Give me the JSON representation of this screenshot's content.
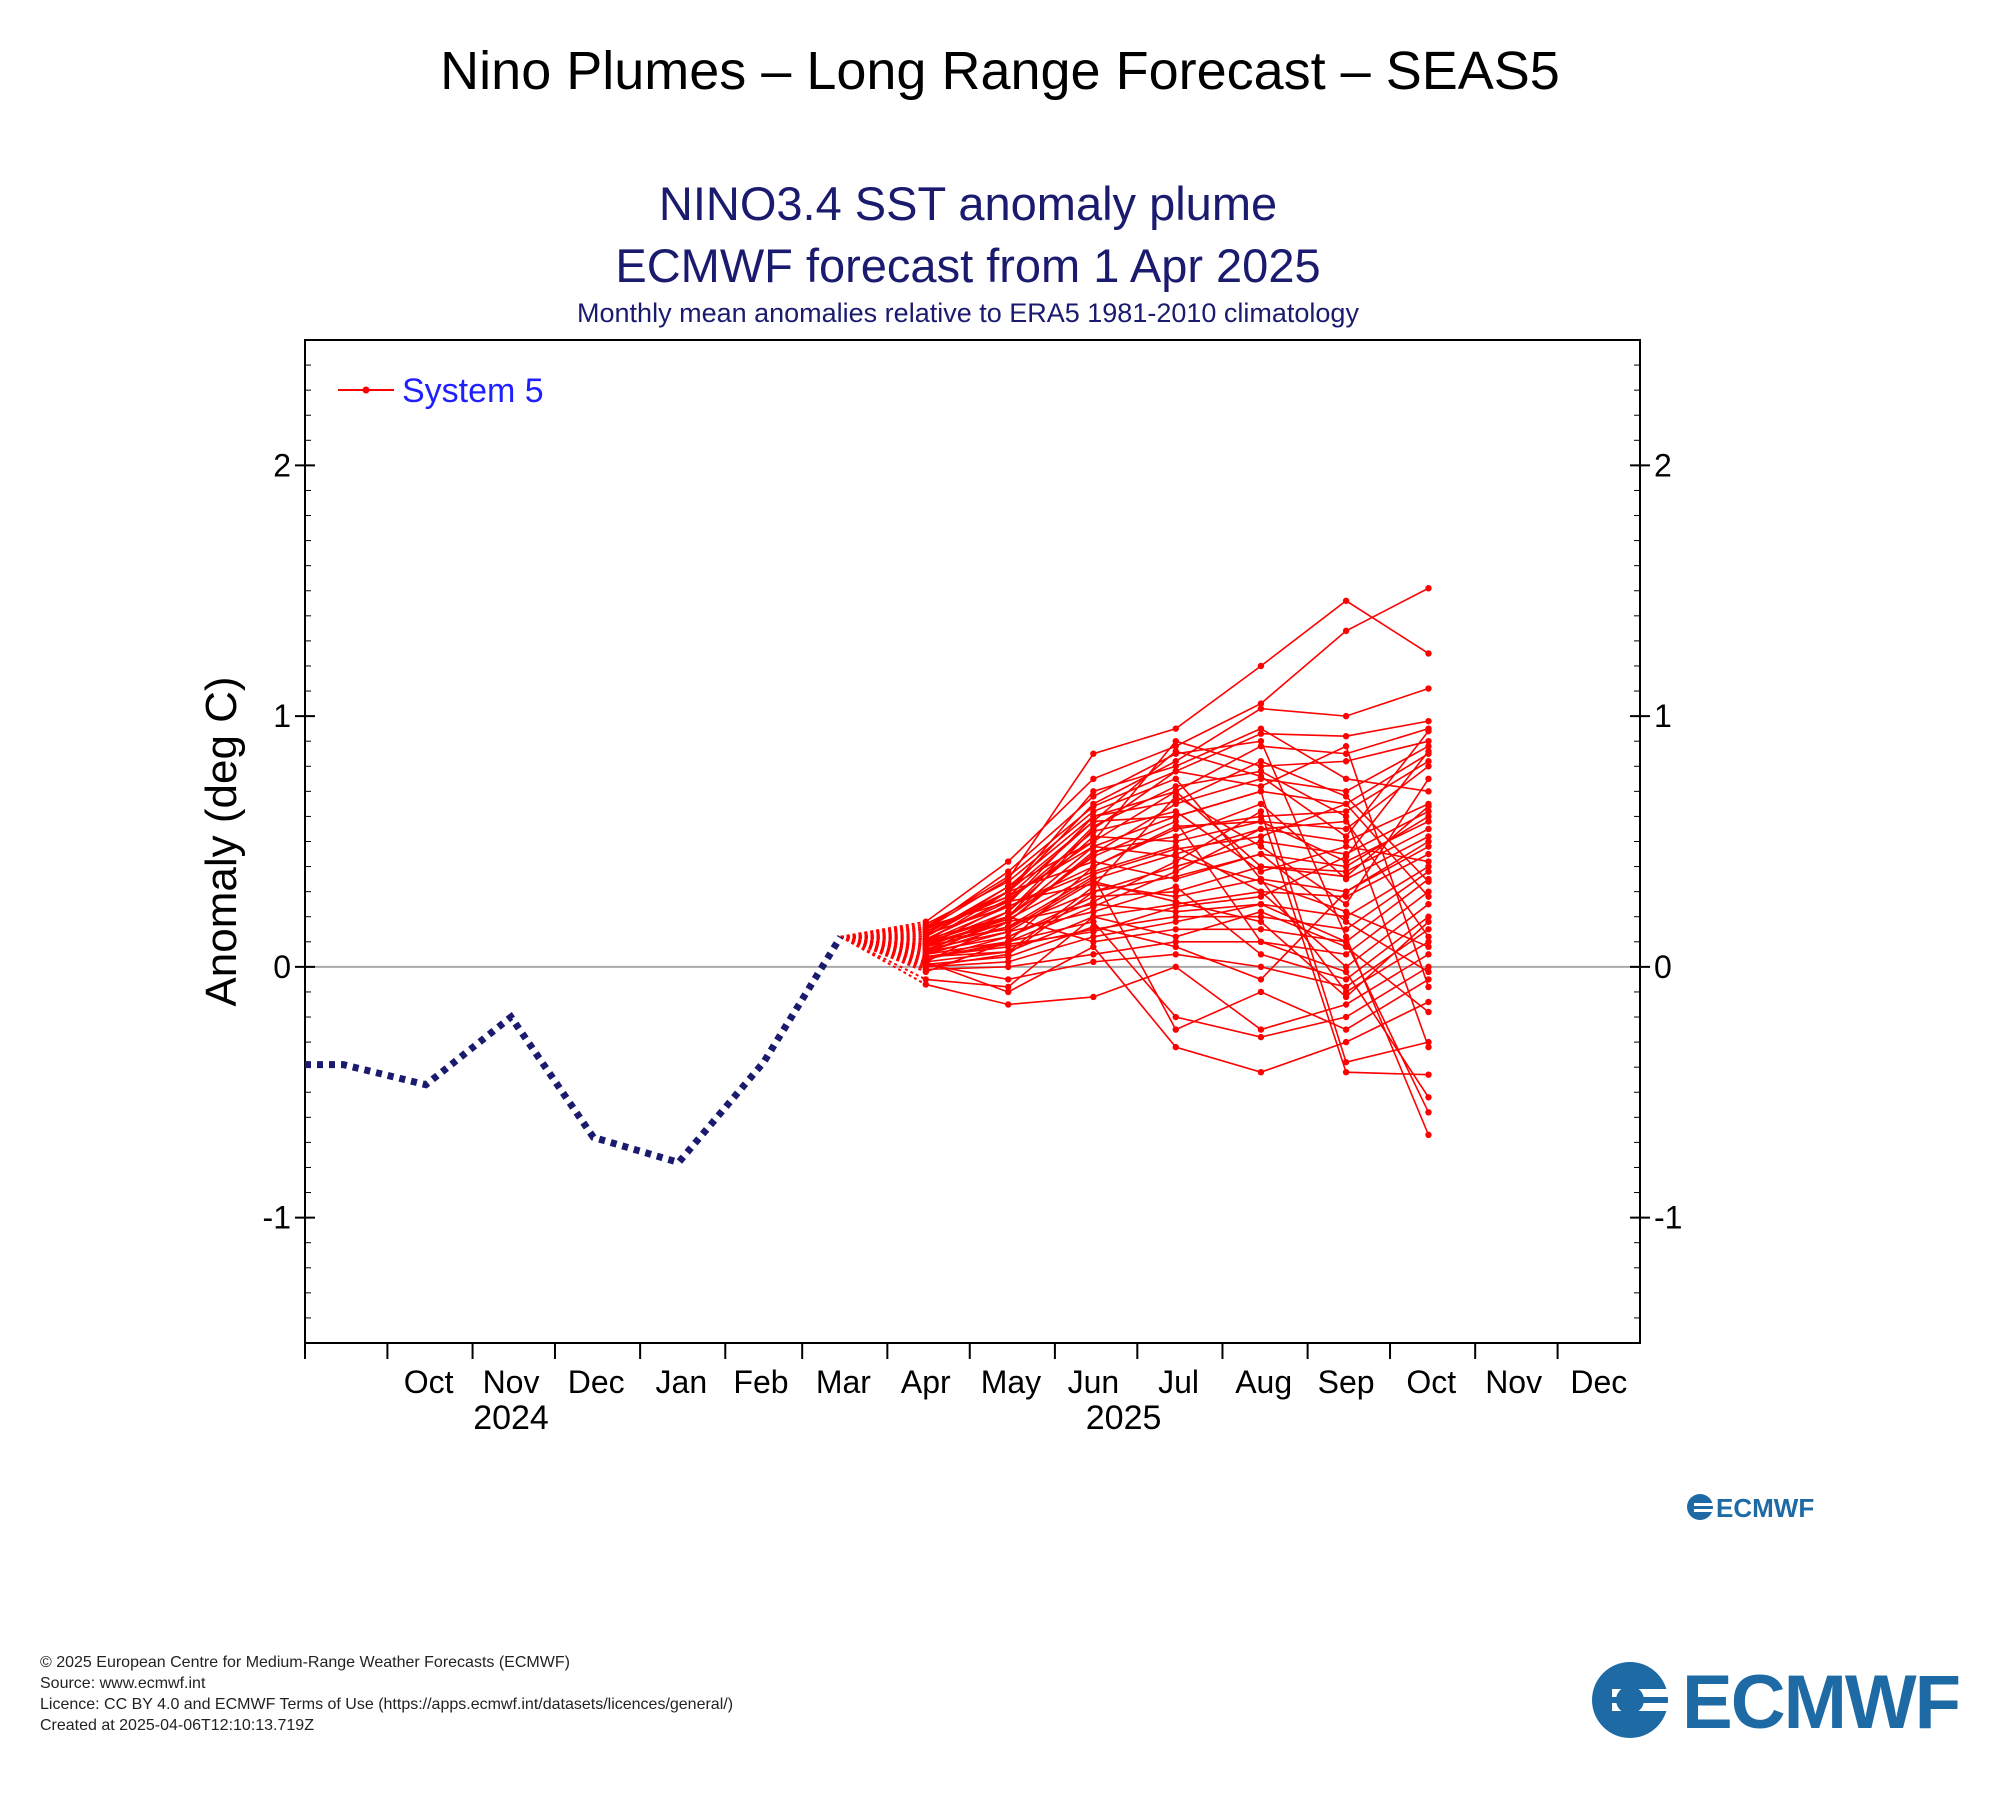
{
  "page": {
    "title": "Nino Plumes – Long Range Forecast – SEAS5"
  },
  "chart_data": {
    "type": "line",
    "title": "NINO3.4 SST anomaly plume",
    "title2": "ECMWF forecast from 1 Apr 2025",
    "subtitle": "Monthly mean anomalies relative to ERA5 1981-2010 climatology",
    "ylabel": "Anomaly (deg C)",
    "xlabel": "",
    "ylim": [
      -1.5,
      2.5
    ],
    "yticks": [
      -1,
      0,
      1,
      2
    ],
    "ytick_labels": [
      "-1",
      "0",
      "1",
      "2"
    ],
    "x_month_labels": [
      "Oct",
      "Nov",
      "Dec",
      "Jan",
      "Feb",
      "Mar",
      "Apr",
      "May",
      "Jun",
      "Jul",
      "Aug",
      "Sep",
      "Oct",
      "Nov",
      "Dec"
    ],
    "x_year_labels": [
      {
        "label": "2024",
        "month": "Nov 2024"
      },
      {
        "label": "2025",
        "month": "Jun 2025"
      }
    ],
    "legend": {
      "entries": [
        "System 5"
      ],
      "placement": "top-left"
    },
    "grid": false,
    "zero_line": true,
    "colors": {
      "observed": "#1a1a6e",
      "forecast": "#ff0000",
      "title": "#1a1a6e",
      "legend_text": "#2020ff"
    },
    "observed": {
      "name": "",
      "dates": [
        "2024-09-15",
        "2024-10-15",
        "2024-11-15",
        "2024-12-15",
        "2025-01-15",
        "2025-02-15",
        "2025-03-15"
      ],
      "values": [
        -0.39,
        -0.47,
        -0.2,
        -0.68,
        -0.78,
        -0.38,
        0.12
      ]
    },
    "forecast": {
      "name": "System 5",
      "dates": [
        "2025-03-15",
        "2025-04-15",
        "2025-05-15",
        "2025-06-15",
        "2025-07-15",
        "2025-08-15",
        "2025-09-15",
        "2025-10-15"
      ],
      "members": [
        [
          0.12,
          0.15,
          0.35,
          0.85,
          0.95,
          1.2,
          1.46,
          1.25
        ],
        [
          0.12,
          0.18,
          0.42,
          0.75,
          0.88,
          1.05,
          1.34,
          1.51
        ],
        [
          0.12,
          0.1,
          0.3,
          0.65,
          0.82,
          1.03,
          1.0,
          1.11
        ],
        [
          0.12,
          0.05,
          0.2,
          0.55,
          0.78,
          0.93,
          0.92,
          0.98
        ],
        [
          0.12,
          0.08,
          0.25,
          0.6,
          0.7,
          0.88,
          0.85,
          0.95
        ],
        [
          0.12,
          0.12,
          0.32,
          0.5,
          0.9,
          0.8,
          0.82,
          0.9
        ],
        [
          0.12,
          0.02,
          0.18,
          0.45,
          0.65,
          0.75,
          0.7,
          0.88
        ],
        [
          0.12,
          0.15,
          0.28,
          0.58,
          0.6,
          0.7,
          0.65,
          0.85
        ],
        [
          0.12,
          -0.02,
          0.1,
          0.4,
          0.55,
          0.6,
          0.62,
          0.82
        ],
        [
          0.12,
          0.06,
          0.22,
          0.52,
          0.5,
          0.58,
          0.55,
          0.8
        ],
        [
          0.12,
          0.1,
          0.15,
          0.35,
          0.45,
          0.55,
          0.5,
          0.65
        ],
        [
          0.12,
          0.0,
          0.05,
          0.3,
          0.4,
          0.5,
          0.45,
          0.62
        ],
        [
          0.12,
          0.14,
          0.3,
          0.42,
          0.35,
          0.45,
          0.4,
          0.6
        ],
        [
          0.12,
          0.03,
          0.12,
          0.28,
          0.3,
          0.4,
          0.38,
          0.55
        ],
        [
          0.12,
          0.16,
          0.26,
          0.33,
          0.28,
          0.35,
          0.3,
          0.5
        ],
        [
          0.12,
          -0.05,
          -0.08,
          0.2,
          0.25,
          0.3,
          0.28,
          0.45
        ],
        [
          0.12,
          0.09,
          0.18,
          0.25,
          0.22,
          0.25,
          0.2,
          0.4
        ],
        [
          0.12,
          0.04,
          0.08,
          0.15,
          0.2,
          0.2,
          0.15,
          0.38
        ],
        [
          0.12,
          0.11,
          0.2,
          0.1,
          0.15,
          0.15,
          0.1,
          0.35
        ],
        [
          0.12,
          -0.01,
          0.0,
          0.05,
          0.1,
          0.1,
          0.05,
          0.3
        ],
        [
          0.12,
          0.13,
          0.24,
          0.38,
          0.48,
          0.3,
          0.0,
          0.25
        ],
        [
          0.12,
          0.07,
          0.14,
          0.22,
          0.32,
          0.05,
          -0.05,
          0.2
        ],
        [
          0.12,
          0.01,
          -0.05,
          0.02,
          0.05,
          0.0,
          -0.08,
          0.15
        ],
        [
          0.12,
          0.17,
          0.34,
          0.62,
          0.75,
          0.35,
          -0.1,
          0.1
        ],
        [
          0.12,
          -0.07,
          -0.15,
          -0.12,
          0.0,
          -0.25,
          -0.15,
          0.05
        ],
        [
          0.12,
          0.05,
          0.1,
          0.18,
          -0.2,
          -0.28,
          -0.2,
          0.0
        ],
        [
          0.12,
          0.08,
          0.16,
          0.36,
          -0.25,
          -0.1,
          -0.25,
          -0.05
        ],
        [
          0.12,
          0.02,
          -0.1,
          0.08,
          -0.32,
          -0.42,
          -0.3,
          -0.14
        ],
        [
          0.12,
          0.14,
          0.28,
          0.48,
          0.6,
          0.7,
          -0.38,
          -0.3
        ],
        [
          0.12,
          0.06,
          0.12,
          0.26,
          0.42,
          0.62,
          -0.42,
          -0.43
        ],
        [
          0.12,
          0.1,
          0.2,
          0.44,
          0.58,
          0.1,
          -0.02,
          -0.52
        ],
        [
          0.12,
          0.0,
          0.02,
          0.12,
          0.18,
          0.25,
          0.1,
          -0.58
        ],
        [
          0.12,
          0.15,
          0.38,
          0.68,
          0.85,
          0.9,
          0.12,
          -0.67
        ],
        [
          0.12,
          0.09,
          0.22,
          0.56,
          0.72,
          0.78,
          0.6,
          -0.32
        ],
        [
          0.12,
          0.04,
          0.06,
          0.32,
          0.68,
          0.48,
          0.25,
          0.75
        ],
        [
          0.12,
          0.12,
          0.3,
          0.7,
          0.8,
          0.95,
          0.75,
          0.7
        ],
        [
          0.12,
          0.07,
          0.18,
          0.46,
          0.52,
          0.65,
          0.35,
          0.52
        ],
        [
          0.12,
          0.11,
          0.26,
          0.54,
          0.62,
          0.38,
          0.48,
          0.42
        ],
        [
          0.12,
          0.03,
          0.1,
          0.24,
          0.38,
          0.55,
          0.58,
          0.12
        ],
        [
          0.12,
          0.16,
          0.36,
          0.64,
          0.78,
          0.72,
          0.88,
          -0.08
        ],
        [
          0.12,
          0.05,
          0.14,
          0.34,
          0.26,
          0.18,
          -0.12,
          0.18
        ],
        [
          0.12,
          0.13,
          0.32,
          0.6,
          0.66,
          0.82,
          0.68,
          0.34
        ],
        [
          0.12,
          0.08,
          0.2,
          0.48,
          0.44,
          0.34,
          0.22,
          0.08
        ],
        [
          0.12,
          0.01,
          0.04,
          0.16,
          0.08,
          -0.05,
          0.3,
          0.48
        ],
        [
          0.12,
          0.1,
          0.24,
          0.4,
          0.56,
          0.58,
          0.42,
          0.58
        ],
        [
          0.12,
          0.06,
          0.16,
          0.3,
          0.36,
          0.45,
          0.18,
          -0.02
        ],
        [
          0.12,
          0.14,
          0.3,
          0.58,
          0.86,
          0.76,
          0.52,
          0.94
        ],
        [
          0.12,
          0.02,
          0.06,
          0.2,
          0.12,
          0.22,
          0.08,
          -0.18
        ],
        [
          0.12,
          0.09,
          0.19,
          0.37,
          0.47,
          0.52,
          0.65,
          0.28
        ],
        [
          0.12,
          0.11,
          0.27,
          0.5,
          0.7,
          0.4,
          0.36,
          0.64
        ],
        [
          0.12,
          0.04,
          0.09,
          0.14,
          0.24,
          0.28,
          0.44,
          0.86
        ]
      ]
    }
  },
  "footer": {
    "line1": "© 2025 European Centre for Medium-Range Weather Forecasts (ECMWF)",
    "line2": "Source: www.ecmwf.int",
    "line3": "Licence: CC BY 4.0 and ECMWF Terms of Use (https://apps.ecmwf.int/datasets/licences/general/)",
    "line4": "Created at 2025-04-06T12:10:13.719Z"
  },
  "logo": {
    "text": "ECMWF",
    "color": "#1d6aa5"
  }
}
